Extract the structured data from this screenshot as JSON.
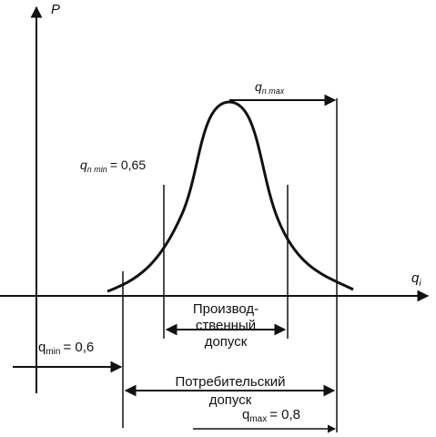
{
  "axes": {
    "y_label": "P",
    "x_label_main": "q",
    "x_label_sub": "i"
  },
  "labels": {
    "qn_max_main": "q",
    "qn_max_sub": "n max",
    "qn_min_main": "q",
    "qn_min_sub": "n min",
    "qn_min_value": "= 0,65",
    "q_min_main": "q",
    "q_min_sub": "min",
    "q_min_value": "= 0,6",
    "q_max_main": "q",
    "q_max_sub": "max",
    "q_max_value": "= 0,8",
    "production_tolerance_line1": "Производ-",
    "production_tolerance_line2": "ственный",
    "production_tolerance_line3": "допуск",
    "consumer_tolerance_line1": "Потребительский",
    "consumer_tolerance_line2": "допуск"
  },
  "colors": {
    "ink": "#111111",
    "background": "#ffffff"
  }
}
